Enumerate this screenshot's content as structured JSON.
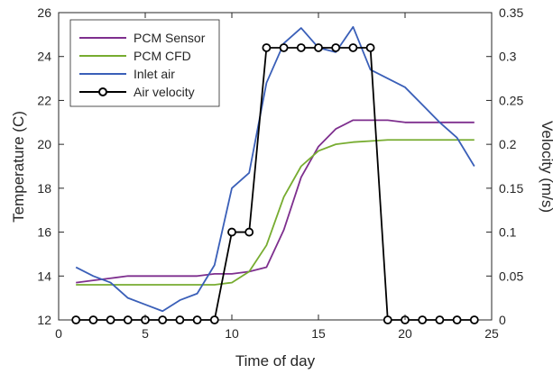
{
  "chart_data": {
    "type": "line",
    "xlabel": "Time of day",
    "ylabel_left": "Temperature (C)",
    "ylabel_right": "Velocity (m/s)",
    "xlim": [
      0,
      25
    ],
    "ylim_left": [
      12,
      26
    ],
    "ylim_right": [
      0,
      0.35
    ],
    "xticks": [
      0,
      5,
      10,
      15,
      20,
      25
    ],
    "yticks_left": [
      12,
      14,
      16,
      18,
      20,
      22,
      24,
      26
    ],
    "yticks_right": [
      0,
      0.05,
      0.1,
      0.15,
      0.2,
      0.25,
      0.3,
      0.35
    ],
    "ytick_labels_right": [
      "0",
      "0.05",
      "0.1",
      "0.15",
      "0.2",
      "0.25",
      "0.3",
      "0.35"
    ],
    "grid": false,
    "legend_position": "top-left",
    "series": [
      {
        "name": "PCM Sensor",
        "axis": "left",
        "color": "#7e2f8e",
        "marker": "none",
        "x": [
          1,
          2,
          3,
          4,
          5,
          6,
          7,
          8,
          9,
          10,
          11,
          12,
          13,
          14,
          15,
          16,
          17,
          18,
          19,
          20,
          21,
          22,
          23,
          24
        ],
        "y": [
          13.7,
          13.8,
          13.9,
          14.0,
          14.0,
          14.0,
          14.0,
          14.0,
          14.1,
          14.1,
          14.2,
          14.4,
          16.1,
          18.5,
          19.9,
          20.7,
          21.1,
          21.1,
          21.1,
          21.0,
          21.0,
          21.0,
          21.0,
          21.0
        ]
      },
      {
        "name": "PCM CFD",
        "axis": "left",
        "color": "#77ac30",
        "marker": "none",
        "x": [
          1,
          2,
          3,
          4,
          5,
          6,
          7,
          8,
          9,
          10,
          11,
          12,
          13,
          14,
          15,
          16,
          17,
          18,
          19,
          20,
          21,
          22,
          23,
          24
        ],
        "y": [
          13.6,
          13.6,
          13.6,
          13.6,
          13.6,
          13.6,
          13.6,
          13.6,
          13.6,
          13.7,
          14.2,
          15.4,
          17.6,
          19.0,
          19.7,
          20.0,
          20.1,
          20.15,
          20.2,
          20.2,
          20.2,
          20.2,
          20.2,
          20.2
        ]
      },
      {
        "name": "Inlet air",
        "axis": "left",
        "color": "#3a5fb8",
        "marker": "none",
        "x": [
          1,
          2,
          3,
          4,
          5,
          6,
          7,
          8,
          9,
          10,
          11,
          12,
          13,
          14,
          15,
          16,
          17,
          18,
          19,
          20,
          21,
          22,
          23,
          24
        ],
        "y": [
          14.4,
          14.0,
          13.7,
          13.0,
          12.7,
          12.4,
          12.9,
          13.2,
          14.5,
          18.0,
          18.7,
          22.8,
          24.6,
          25.3,
          24.4,
          24.2,
          25.35,
          23.4,
          23.0,
          22.6,
          21.8,
          21.0,
          20.3,
          19.0
        ]
      },
      {
        "name": "Air velocity",
        "axis": "right",
        "color": "#000000",
        "marker": "circle",
        "x": [
          1,
          2,
          3,
          4,
          5,
          6,
          7,
          8,
          9,
          10,
          11,
          12,
          13,
          14,
          15,
          16,
          17,
          18,
          19,
          20,
          21,
          22,
          23,
          24
        ],
        "y": [
          0,
          0,
          0,
          0,
          0,
          0,
          0,
          0,
          0,
          0.1,
          0.1,
          0.31,
          0.31,
          0.31,
          0.31,
          0.31,
          0.31,
          0.31,
          0,
          0,
          0,
          0,
          0,
          0
        ]
      }
    ]
  }
}
